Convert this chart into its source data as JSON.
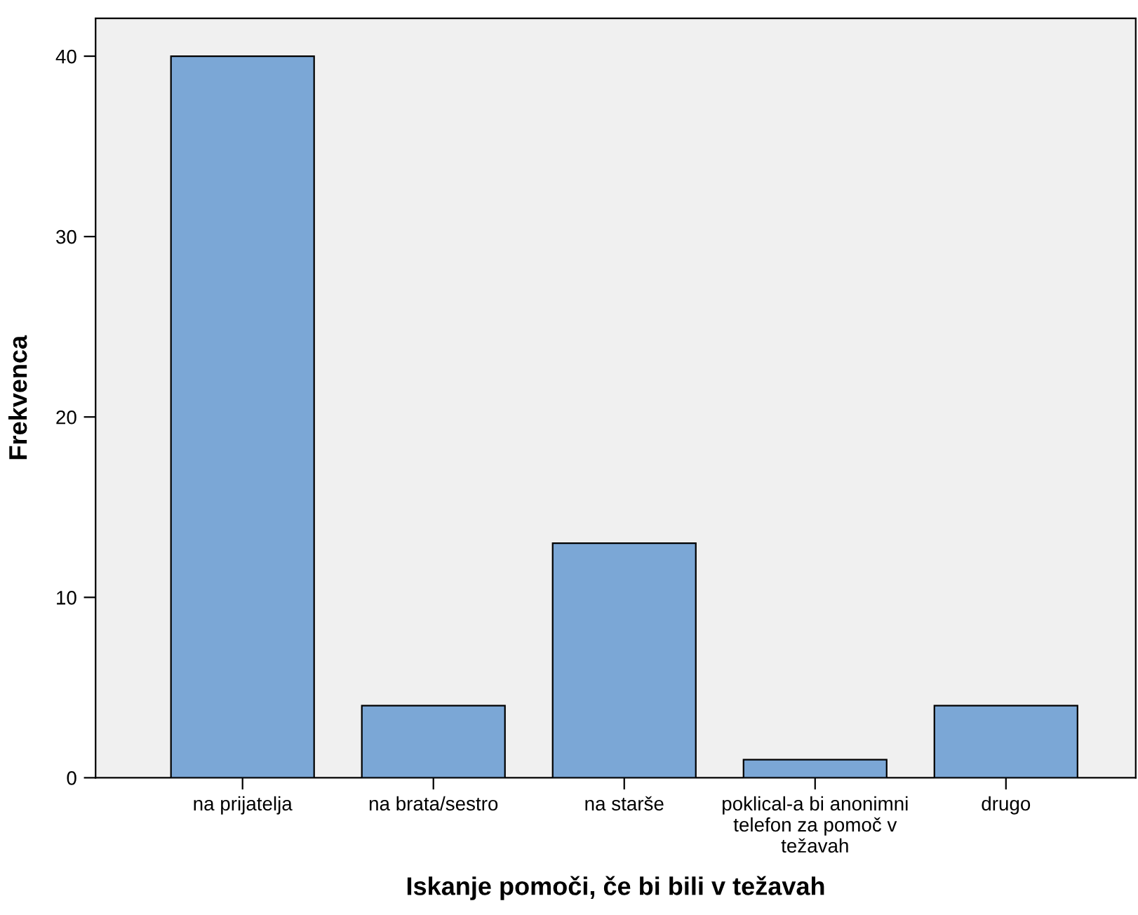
{
  "chart_data": {
    "type": "bar",
    "xlabel": "Iskanje pomoči, če bi bili v težavah",
    "ylabel": "Frekvenca",
    "categories": [
      "na prijatelja",
      "na brata/sestro",
      "na starše",
      "poklical-a bi anonimni\ntelefon za pomoč v\ntežavah",
      "drugo"
    ],
    "values": [
      40,
      4,
      13,
      1,
      4
    ],
    "color": "#7ba7d6",
    "ylim": [
      0,
      42.1
    ],
    "yticks": [
      0,
      10,
      20,
      30,
      40
    ],
    "grid": false
  }
}
